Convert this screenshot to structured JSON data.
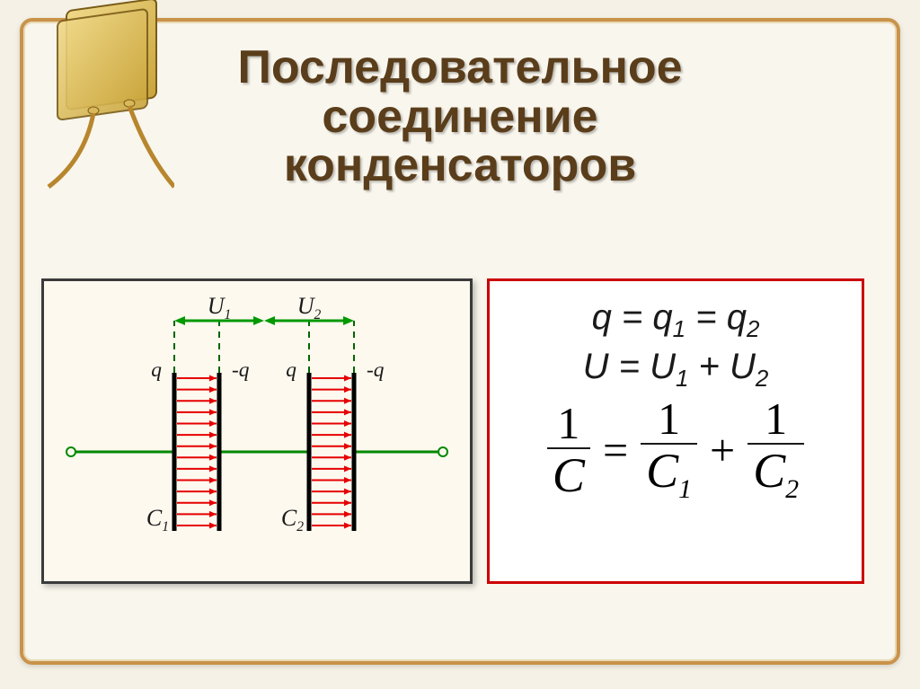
{
  "title": {
    "line1": "Последовательное",
    "line2": "соединение",
    "line3": "конденсаторов",
    "fontsize": 52,
    "color": "#5a3d1a"
  },
  "frame": {
    "border_color": "#c9934a",
    "background": "#f9f6ed"
  },
  "formula_box": {
    "border_color": "#cc0000",
    "background": "#ffffff",
    "eq1": {
      "lhs": "q",
      "op": "=",
      "r1": "q",
      "s1": "1",
      "op2": "=",
      "r2": "q",
      "s2": "2",
      "fontsize": 40
    },
    "eq2": {
      "lhs": "U",
      "op": "=",
      "r1": "U",
      "s1": "1",
      "op2": "+",
      "r2": "U",
      "s2": "2",
      "fontsize": 40
    },
    "eq3": {
      "num": "1",
      "den": "C",
      "num1": "1",
      "den1": "C",
      "sub1": "1",
      "num2": "1",
      "den2": "C",
      "sub2": "2",
      "fontsize": 50,
      "fontsize_den": 54
    }
  },
  "diagram": {
    "background": "#fdf9ee",
    "border_color": "#3b3b3b",
    "wire_color": "#008800",
    "arrow_color": "#009900",
    "dash_color": "#006600",
    "plate_color": "#000000",
    "field_color": "#e60000",
    "labels": {
      "U1": "U",
      "U1_sub": "1",
      "U2": "U",
      "U2_sub": "2",
      "q_plus": "q",
      "q_minus": "-q",
      "C1_sub": "1",
      "C2_sub": "2",
      "C": "C"
    },
    "label_fontsize": 26,
    "n_field_lines": 14,
    "plate_spacing": 50,
    "plate_height": 176
  },
  "decor_capacitor": {
    "body_color_light": "#f0d98a",
    "body_color_dark": "#c9a43a",
    "lead_color": "#b8862d"
  }
}
